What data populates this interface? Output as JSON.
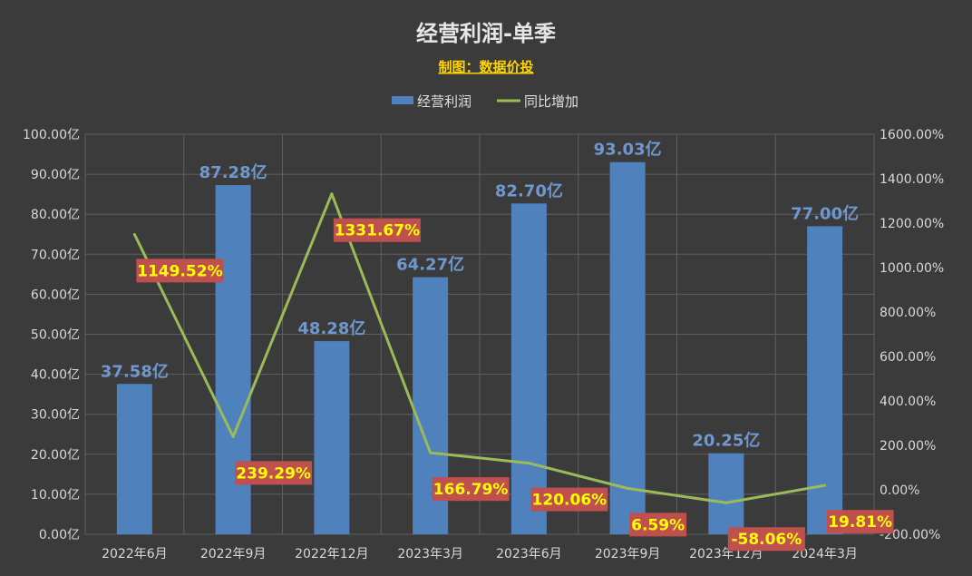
{
  "chart_data": {
    "type": "bar",
    "title": "经营利润-单季",
    "subtitle": "制图：数据价投",
    "categories": [
      "2022年6月",
      "2022年9月",
      "2022年12月",
      "2023年3月",
      "2023年6月",
      "2023年9月",
      "2023年12月",
      "2024年3月"
    ],
    "series": [
      {
        "name": "经营利润",
        "type": "bar",
        "axis": "left",
        "values": [
          37.58,
          87.28,
          48.28,
          64.27,
          82.7,
          93.03,
          20.25,
          77.0
        ],
        "labels": [
          "37.58亿",
          "87.28亿",
          "48.28亿",
          "64.27亿",
          "82.70亿",
          "93.03亿",
          "20.25亿",
          "77.00亿"
        ],
        "color": "#4f81bd"
      },
      {
        "name": "同比增加",
        "type": "line",
        "axis": "right",
        "values": [
          1149.52,
          239.29,
          1331.67,
          166.79,
          120.06,
          6.59,
          -58.06,
          19.81
        ],
        "labels": [
          "1149.52%",
          "239.29%",
          "1331.67%",
          "166.79%",
          "120.06%",
          "6.59%",
          "-58.06%",
          "19.81%"
        ],
        "color": "#9bbb59"
      }
    ],
    "y_left": {
      "ylim": [
        0,
        100
      ],
      "ticks": [
        "0.00亿",
        "10.00亿",
        "20.00亿",
        "30.00亿",
        "40.00亿",
        "50.00亿",
        "60.00亿",
        "70.00亿",
        "80.00亿",
        "90.00亿",
        "100.00亿"
      ]
    },
    "y_right": {
      "ylim": [
        -200,
        1600
      ],
      "ticks": [
        "-200.00%",
        "0.00%",
        "200.00%",
        "400.00%",
        "600.00%",
        "800.00%",
        "1000.00%",
        "1200.00%",
        "1400.00%",
        "1600.00%"
      ]
    },
    "grid": true,
    "legend": "top-center",
    "colors": {
      "background": "#3b3b3b",
      "grid": "#5f5f5f",
      "line_label_bg": "#c0504d",
      "line_label_text": "#ffff00",
      "bar_label": "#6f97d0"
    }
  }
}
